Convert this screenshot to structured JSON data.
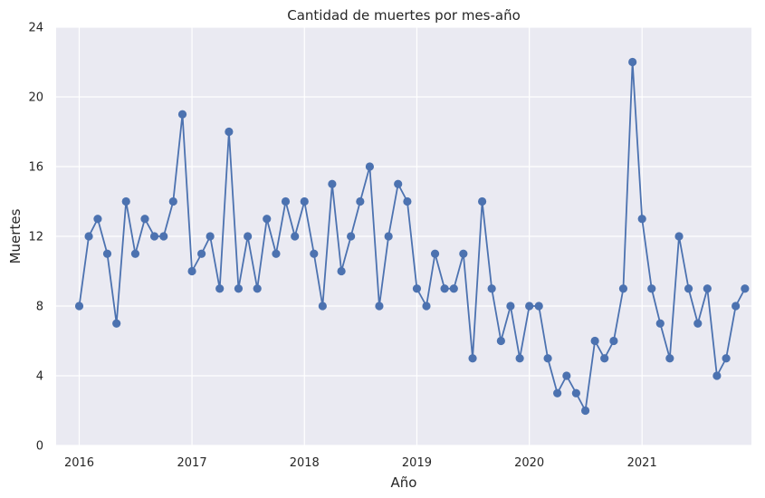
{
  "chart_data": {
    "type": "line",
    "title": "Cantidad de muertes por mes-año",
    "xlabel": "Año",
    "ylabel": "Muertes",
    "ylim": [
      0,
      24
    ],
    "yticks": [
      0,
      4,
      8,
      12,
      16,
      20,
      24
    ],
    "xlim": [
      "2015-10-18",
      "2021-12-22"
    ],
    "xticks": [
      {
        "label": "2016",
        "date": "2016-01-01"
      },
      {
        "label": "2017",
        "date": "2017-01-01"
      },
      {
        "label": "2018",
        "date": "2018-01-01"
      },
      {
        "label": "2019",
        "date": "2019-01-01"
      },
      {
        "label": "2020",
        "date": "2020-01-01"
      },
      {
        "label": "2021",
        "date": "2021-01-01"
      }
    ],
    "grid": true,
    "marker": "circle",
    "color": "#4c72b0",
    "x": [
      "2016-01",
      "2016-02",
      "2016-03",
      "2016-04",
      "2016-05",
      "2016-06",
      "2016-07",
      "2016-08",
      "2016-09",
      "2016-10",
      "2016-11",
      "2016-12",
      "2017-01",
      "2017-02",
      "2017-03",
      "2017-04",
      "2017-05",
      "2017-06",
      "2017-07",
      "2017-08",
      "2017-09",
      "2017-10",
      "2017-11",
      "2017-12",
      "2018-01",
      "2018-02",
      "2018-03",
      "2018-04",
      "2018-05",
      "2018-06",
      "2018-07",
      "2018-08",
      "2018-09",
      "2018-10",
      "2018-11",
      "2018-12",
      "2019-01",
      "2019-02",
      "2019-03",
      "2019-04",
      "2019-05",
      "2019-06",
      "2019-07",
      "2019-08",
      "2019-09",
      "2019-10",
      "2019-11",
      "2019-12",
      "2020-01",
      "2020-02",
      "2020-03",
      "2020-04",
      "2020-05",
      "2020-06",
      "2020-07",
      "2020-08",
      "2020-09",
      "2020-10",
      "2020-11",
      "2020-12",
      "2021-01",
      "2021-02",
      "2021-03",
      "2021-04",
      "2021-05",
      "2021-06",
      "2021-07",
      "2021-08",
      "2021-09",
      "2021-10",
      "2021-11",
      "2021-12"
    ],
    "values": [
      8,
      12,
      13,
      11,
      7,
      14,
      11,
      13,
      12,
      12,
      14,
      19,
      10,
      11,
      12,
      9,
      18,
      9,
      12,
      9,
      13,
      11,
      14,
      12,
      14,
      11,
      8,
      15,
      10,
      12,
      14,
      16,
      8,
      12,
      15,
      14,
      9,
      8,
      11,
      9,
      9,
      11,
      5,
      14,
      9,
      6,
      8,
      5,
      8,
      8,
      5,
      3,
      4,
      3,
      2,
      6,
      5,
      6,
      9,
      22,
      13,
      9,
      7,
      5,
      12,
      9,
      7,
      9,
      4,
      5,
      8,
      9
    ]
  }
}
